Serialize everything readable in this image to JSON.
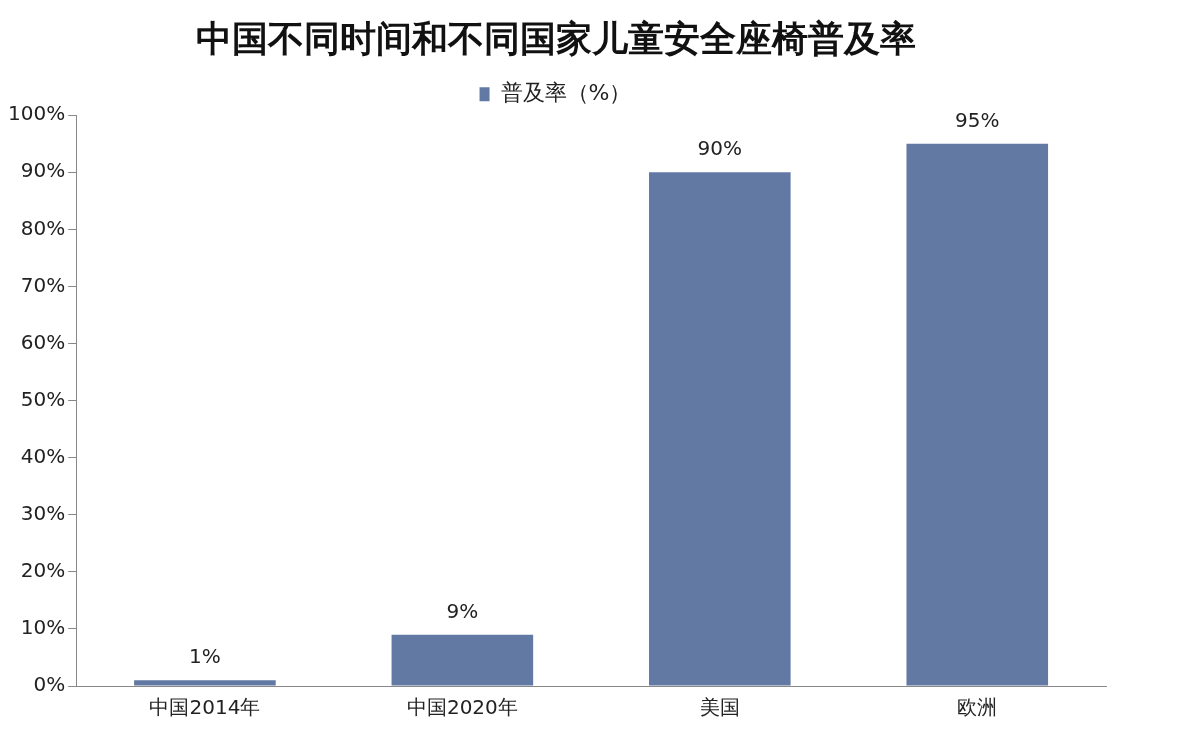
{
  "chart_data": {
    "type": "bar",
    "title": "中国不同时间和不同国家儿童安全座椅普及率",
    "categories": [
      "中国2014年",
      "中国2020年",
      "美国",
      "欧洲"
    ],
    "series": [
      {
        "name": "普及率（%）",
        "color": "#6279a3",
        "values": [
          1,
          9,
          90,
          95
        ],
        "value_labels": [
          "1%",
          "9%",
          "90%",
          "95%"
        ]
      }
    ],
    "ylim": [
      0,
      100
    ],
    "yticks": [
      {
        "value": 0,
        "label": "0%"
      },
      {
        "value": 10,
        "label": "10%"
      },
      {
        "value": 20,
        "label": "20%"
      },
      {
        "value": 30,
        "label": "30%"
      },
      {
        "value": 40,
        "label": "40%"
      },
      {
        "value": 50,
        "label": "50%"
      },
      {
        "value": 60,
        "label": "60%"
      },
      {
        "value": 70,
        "label": "70%"
      },
      {
        "value": 80,
        "label": "80%"
      },
      {
        "value": 90,
        "label": "90%"
      },
      {
        "value": 100,
        "label": "100%"
      }
    ],
    "grid": false,
    "legend": "top"
  }
}
